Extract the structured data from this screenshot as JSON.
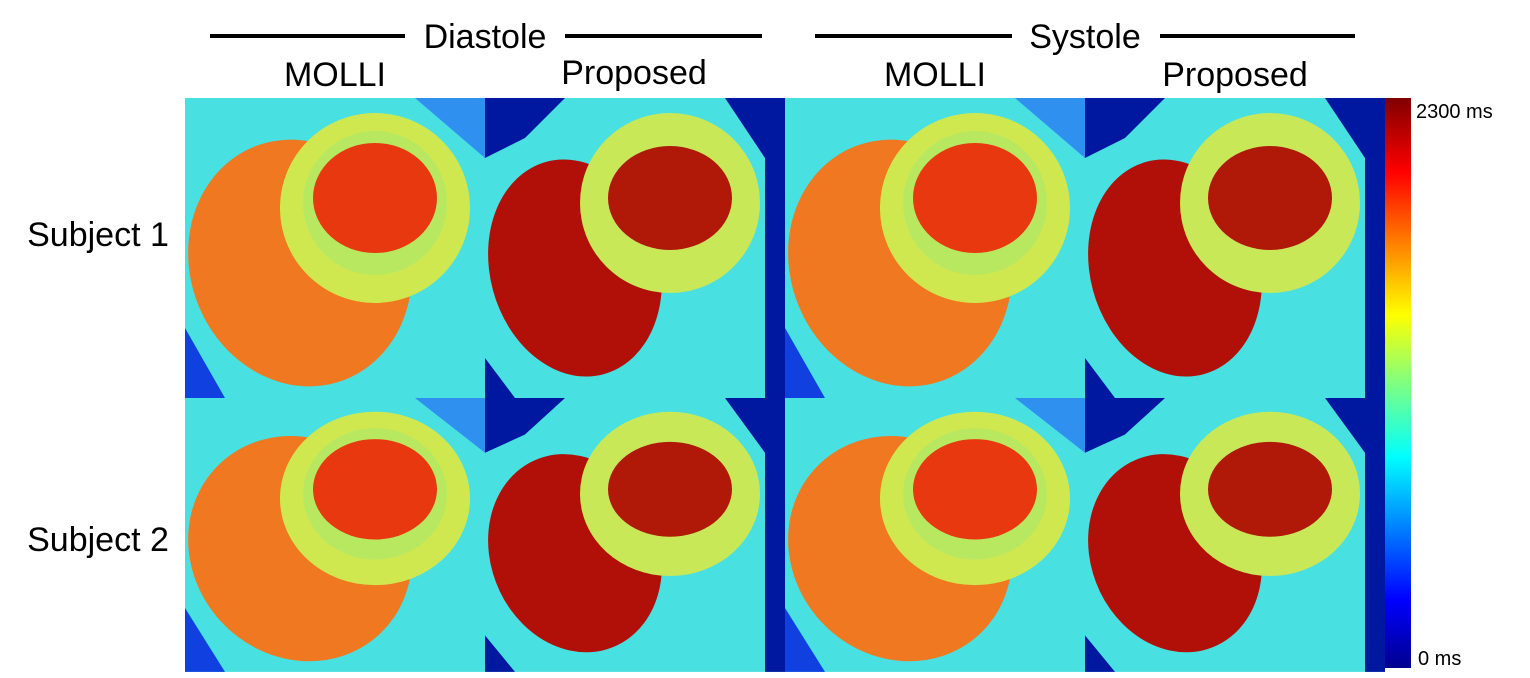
{
  "header": {
    "groups": [
      {
        "label": "Diastole"
      },
      {
        "label": "Systole"
      }
    ],
    "columns": [
      "MOLLI",
      "Proposed",
      "MOLLI",
      "Proposed"
    ]
  },
  "rows": [
    "Subject 1",
    "Subject 2"
  ],
  "colorbar": {
    "max_label": "2300 ms",
    "min_label": "0 ms"
  }
}
